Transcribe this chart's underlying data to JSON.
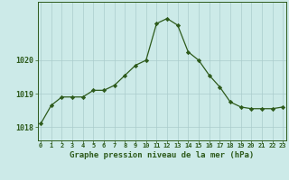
{
  "hours": [
    0,
    1,
    2,
    3,
    4,
    5,
    6,
    7,
    8,
    9,
    10,
    11,
    12,
    13,
    14,
    15,
    16,
    17,
    18,
    19,
    20,
    21,
    22,
    23
  ],
  "pressure": [
    1018.1,
    1018.65,
    1018.9,
    1018.9,
    1018.9,
    1019.1,
    1019.1,
    1019.25,
    1019.55,
    1019.85,
    1020.0,
    1021.1,
    1021.25,
    1021.05,
    1020.25,
    1020.0,
    1019.55,
    1019.2,
    1018.75,
    1018.6,
    1018.55,
    1018.55,
    1018.55,
    1018.6
  ],
  "line_color": "#2d5a1b",
  "marker": "D",
  "marker_size": 2.2,
  "bg_color": "#cceae8",
  "grid_color": "#aacccc",
  "axis_color": "#2d5a1b",
  "tick_color": "#2d5a1b",
  "xlabel": "Graphe pression niveau de la mer (hPa)",
  "xlabel_fontsize": 6.5,
  "ylim": [
    1017.6,
    1021.75
  ],
  "yticks": [
    1018,
    1019,
    1020
  ],
  "xtick_fontsize": 5.0,
  "ytick_fontsize": 6.0,
  "linewidth": 0.9
}
